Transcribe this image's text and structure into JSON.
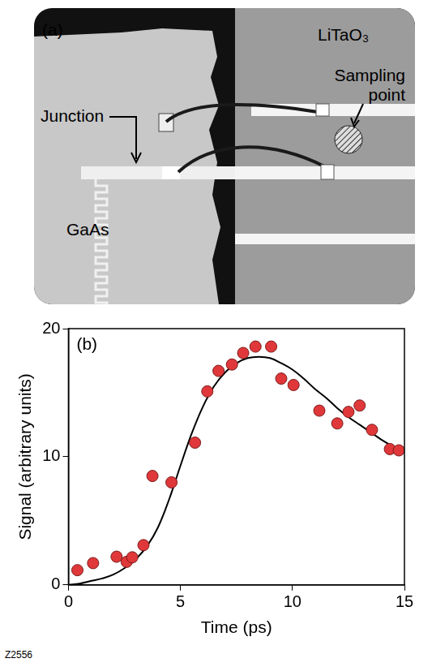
{
  "panel_a": {
    "letter": "(a)",
    "labels": {
      "substrate_right": "LiTaO₃",
      "sampling": "Sampling point",
      "junction": "Junction",
      "substrate_left": "GaAs"
    }
  },
  "chart_data": {
    "type": "scatter",
    "annotation": "(b)",
    "x_label": "Time (ps)",
    "y_label": "Signal (arbitrary units)",
    "xlim": [
      0,
      15
    ],
    "xticks": [
      0,
      5,
      10,
      15
    ],
    "ylim": [
      0,
      20
    ],
    "yticks": [
      0,
      10,
      20
    ],
    "grid": false,
    "series": [
      {
        "type": "scatter",
        "color": "#e0383a",
        "marker": "circle",
        "x": [
          0.4,
          1.1,
          2.15,
          2.6,
          2.85,
          3.35,
          3.75,
          4.6,
          5.65,
          6.2,
          6.7,
          7.3,
          7.8,
          8.35,
          9.05,
          9.5,
          10.05,
          11.2,
          12.0,
          12.5,
          13.0,
          13.55,
          14.35,
          14.75
        ],
        "values": [
          1.15,
          1.7,
          2.2,
          1.8,
          2.15,
          3.1,
          8.5,
          8.0,
          11.1,
          15.1,
          16.7,
          17.2,
          18.1,
          18.6,
          18.6,
          16.1,
          15.6,
          13.6,
          12.6,
          13.5,
          14.0,
          12.1,
          10.6,
          10.5
        ]
      },
      {
        "type": "line",
        "color": "#000000",
        "line_style": "solid",
        "x": [
          0,
          0.5,
          1,
          1.5,
          2,
          2.5,
          3,
          3.5,
          4,
          4.5,
          5,
          5.5,
          6,
          6.5,
          7,
          7.5,
          8,
          8.5,
          9,
          9.5,
          10,
          10.5,
          11,
          11.5,
          12,
          12.5,
          13,
          13.5,
          14,
          14.5,
          15
        ],
        "values": [
          0,
          0.1,
          0.3,
          0.5,
          0.8,
          1.3,
          2.0,
          3.0,
          4.5,
          6.7,
          9.3,
          11.8,
          13.9,
          15.5,
          16.6,
          17.3,
          17.7,
          17.8,
          17.7,
          17.3,
          16.8,
          16.1,
          15.3,
          14.6,
          13.8,
          13.1,
          12.5,
          11.9,
          11.3,
          10.8,
          10.4
        ]
      }
    ]
  },
  "figure_id": "Z2556"
}
